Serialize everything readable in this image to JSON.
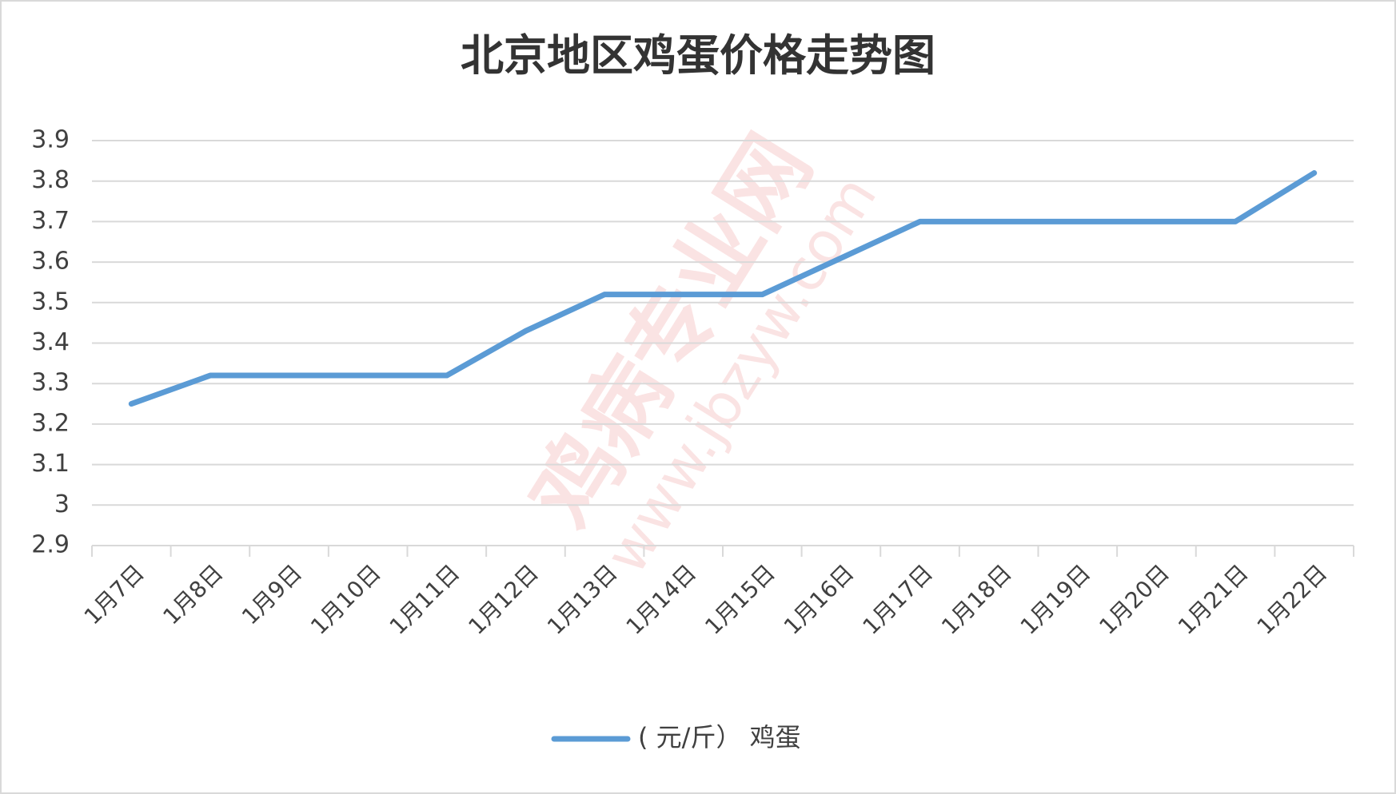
{
  "chart_data": {
    "type": "line",
    "title": "北京地区鸡蛋价格走势图",
    "categories": [
      "1月7日",
      "1月8日",
      "1月9日",
      "1月10日",
      "1月11日",
      "1月12日",
      "1月13日",
      "1月14日",
      "1月15日",
      "1月16日",
      "1月17日",
      "1月18日",
      "1月19日",
      "1月20日",
      "1月21日",
      "1月22日"
    ],
    "series": [
      {
        "name": "( 元/斤） 鸡蛋",
        "color": "#5b9bd5",
        "values": [
          3.25,
          3.32,
          3.32,
          3.32,
          3.32,
          3.43,
          3.52,
          3.52,
          3.52,
          3.61,
          3.7,
          3.7,
          3.7,
          3.7,
          3.7,
          3.82
        ]
      }
    ],
    "ylim": [
      2.9,
      3.9
    ],
    "yticks": [
      2.9,
      3,
      3.1,
      3.2,
      3.3,
      3.4,
      3.5,
      3.6,
      3.7,
      3.8,
      3.9
    ],
    "grid": true,
    "legend": "bottom",
    "watermark": {
      "title": "鸡病专业网",
      "url": "www.jbzyw.com"
    }
  }
}
